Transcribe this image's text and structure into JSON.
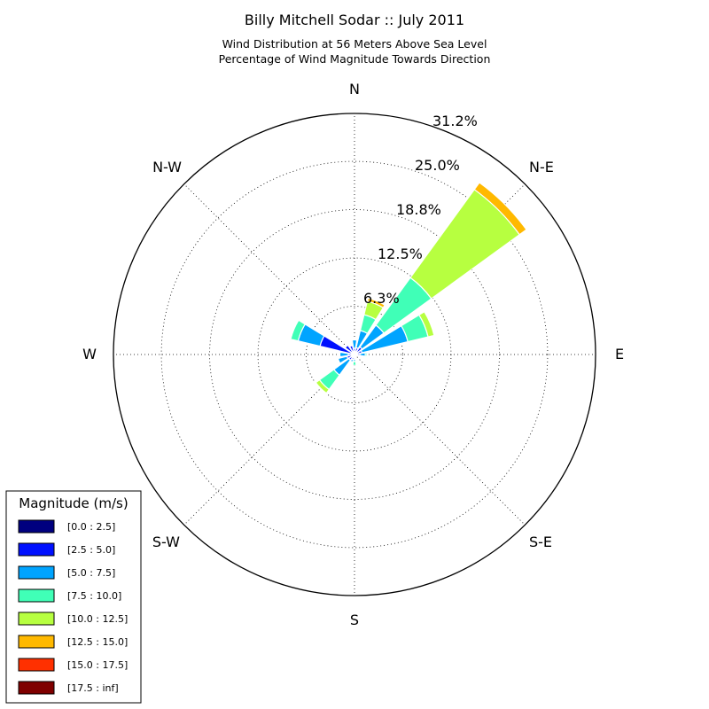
{
  "chart_data": {
    "type": "windrose",
    "title": "Billy Mitchell Sodar :: July 2011",
    "subtitle_lines": [
      "Wind Distribution at 56 Meters Above Sea Level",
      "Percentage of Wind Magnitude Towards Direction"
    ],
    "directions": [
      "N",
      "N-E",
      "E",
      "S-E",
      "S",
      "S-W",
      "W",
      "N-W"
    ],
    "radial_ticks": [
      "6.3%",
      "12.5%",
      "18.8%",
      "25.0%",
      "31.2%"
    ],
    "radial_tick_values": [
      6.25,
      12.5,
      18.75,
      25.0,
      31.2
    ],
    "rmax": 31.2,
    "grid": true,
    "sector_width_deg": 18,
    "legend": {
      "title": "Magnitude (m/s)",
      "placement": "lower-left",
      "bins": [
        {
          "label": "[0.0 : 2.5]",
          "color": "#00007f"
        },
        {
          "label": "[2.5 : 5.0]",
          "color": "#0010ff"
        },
        {
          "label": "[5.0 : 7.5]",
          "color": "#00a4ff"
        },
        {
          "label": "[7.5 : 10.0]",
          "color": "#40ffb7"
        },
        {
          "label": "[10.0 : 12.5]",
          "color": "#b7ff40"
        },
        {
          "label": "[12.5 : 15.0]",
          "color": "#ffb900"
        },
        {
          "label": "[15.0 : 17.5]",
          "color": "#ff3000"
        },
        {
          "label": "[17.5 : inf]",
          "color": "#7f0000"
        }
      ]
    },
    "petals": [
      {
        "direction_deg": 0,
        "cumulative_pct": [
          0.3,
          0.8,
          1.9,
          2.0,
          2.1,
          2.2,
          2.2,
          2.2
        ]
      },
      {
        "direction_deg": 22.5,
        "cumulative_pct": [
          0.3,
          0.9,
          3.2,
          3.2,
          3.2,
          3.2,
          3.2,
          3.2
        ]
      },
      {
        "direction_deg": 22.5,
        "cumulative_pct": [
          0.3,
          0.9,
          3.2,
          5.3,
          7.1,
          7.5,
          7.5,
          7.5
        ]
      },
      {
        "direction_deg": 45,
        "cumulative_pct": [
          0.3,
          1.2,
          4.7,
          12.3,
          26.4,
          27.5,
          27.5,
          27.5
        ]
      },
      {
        "direction_deg": 67.5,
        "cumulative_pct": [
          0.3,
          1.0,
          7.1,
          9.8,
          10.6,
          10.6,
          10.6,
          10.6
        ]
      },
      {
        "direction_deg": 90,
        "cumulative_pct": [
          0.3,
          0.7,
          1.4,
          1.6,
          1.6,
          1.6,
          1.6,
          1.6
        ]
      },
      {
        "direction_deg": 157.5,
        "cumulative_pct": [
          0.2,
          0.5,
          0.5,
          0.5,
          0.5,
          0.5,
          0.5,
          0.5
        ]
      },
      {
        "direction_deg": 180,
        "cumulative_pct": [
          0.2,
          0.6,
          0.9,
          1.4,
          1.4,
          1.4,
          1.4,
          1.4
        ]
      },
      {
        "direction_deg": 202.5,
        "cumulative_pct": [
          0.2,
          0.7,
          1.0,
          1.1,
          1.1,
          1.1,
          1.1,
          1.1
        ]
      },
      {
        "direction_deg": 225,
        "cumulative_pct": [
          0.2,
          0.9,
          3.3,
          5.6,
          6.2,
          6.3,
          6.3,
          6.3
        ]
      },
      {
        "direction_deg": 247.5,
        "cumulative_pct": [
          0.2,
          1.0,
          2.2,
          2.3,
          2.3,
          2.3,
          2.3,
          2.3
        ]
      },
      {
        "direction_deg": 270,
        "cumulative_pct": [
          0.2,
          0.8,
          1.9,
          2.0,
          2.0,
          2.0,
          2.0,
          2.0
        ]
      },
      {
        "direction_deg": 292.5,
        "cumulative_pct": [
          0.2,
          4.6,
          7.5,
          8.5,
          8.6,
          8.6,
          8.6,
          8.6
        ]
      },
      {
        "direction_deg": 315,
        "cumulative_pct": [
          0.3,
          1.5,
          1.6,
          1.6,
          1.6,
          1.6,
          1.6,
          1.6
        ]
      },
      {
        "direction_deg": 337.5,
        "cumulative_pct": [
          0.3,
          1.2,
          1.3,
          1.3,
          1.3,
          1.3,
          1.3,
          1.3
        ]
      }
    ]
  }
}
